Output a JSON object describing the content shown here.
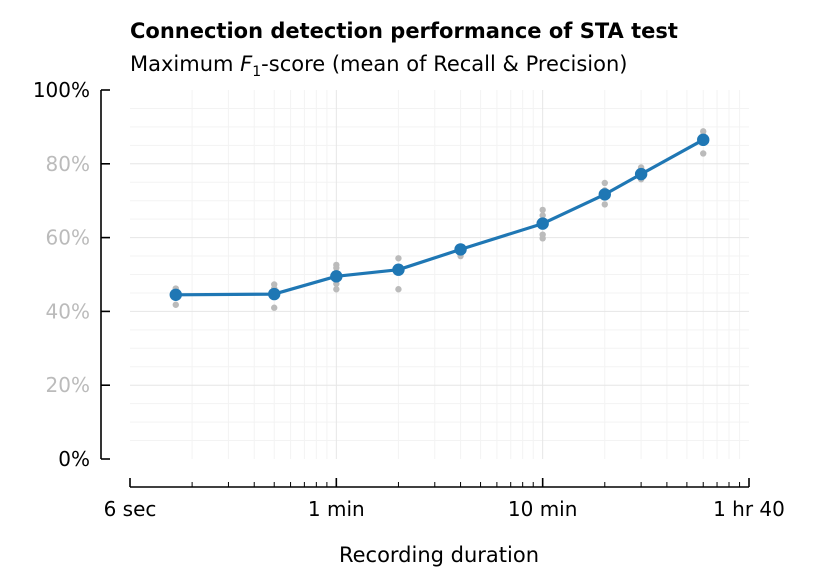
{
  "chart_data": {
    "type": "line",
    "title": "Connection detection performance of STA test",
    "subtitle_prefix": "Maximum ",
    "subtitle_F": "F",
    "subtitle_sub": "1",
    "subtitle_suffix": "-score (mean of Recall & Precision)",
    "xlabel": "Recording duration",
    "ylabel": "",
    "x_scale": "log",
    "x_unit": "seconds",
    "xlim": [
      6,
      6000
    ],
    "ylim": [
      0,
      100
    ],
    "x_ticks": [
      {
        "value": 6,
        "label": "6 sec"
      },
      {
        "value": 60,
        "label": "1 min"
      },
      {
        "value": 600,
        "label": "10 min"
      },
      {
        "value": 6000,
        "label": "1 hr 40"
      }
    ],
    "y_ticks": [
      {
        "value": 0,
        "label": "0%"
      },
      {
        "value": 20,
        "label": "20%"
      },
      {
        "value": 40,
        "label": "40%"
      },
      {
        "value": 60,
        "label": "60%"
      },
      {
        "value": 80,
        "label": "80%"
      },
      {
        "value": 100,
        "label": "100%"
      }
    ],
    "grid": true,
    "series": [
      {
        "color": "#1f77b4",
        "x": [
          10,
          30,
          60,
          120,
          240,
          600,
          1200,
          1800,
          3600
        ],
        "y": [
          44.5,
          44.7,
          49.5,
          51.3,
          56.8,
          63.8,
          71.7,
          77.2,
          86.5
        ]
      }
    ],
    "individual_runs": {
      "color": "#bbbbbb",
      "points": [
        {
          "x": 10,
          "y": [
            41.8,
            44.0,
            45.4,
            46.2
          ]
        },
        {
          "x": 30,
          "y": [
            41.0,
            44.0,
            46.2,
            47.3
          ]
        },
        {
          "x": 60,
          "y": [
            46.0,
            47.5,
            50.5,
            51.8,
            52.6
          ]
        },
        {
          "x": 120,
          "y": [
            46.0,
            51.5,
            54.4
          ]
        },
        {
          "x": 240,
          "y": [
            55.0,
            56.3,
            57.5
          ]
        },
        {
          "x": 600,
          "y": [
            59.8,
            60.8,
            64.7,
            66.0,
            67.5
          ]
        },
        {
          "x": 1200,
          "y": [
            69.0,
            71.0,
            72.8,
            74.8
          ]
        },
        {
          "x": 1800,
          "y": [
            75.8,
            77.5,
            79.0
          ]
        },
        {
          "x": 3600,
          "y": [
            82.8,
            86.5,
            87.7,
            88.8
          ]
        }
      ]
    },
    "colors": {
      "axis": "#000000",
      "y_tick_labels_dim": "#bbbbbb",
      "grid_major": "#e6e6e6",
      "grid_minor": "#f3f3f3"
    }
  }
}
